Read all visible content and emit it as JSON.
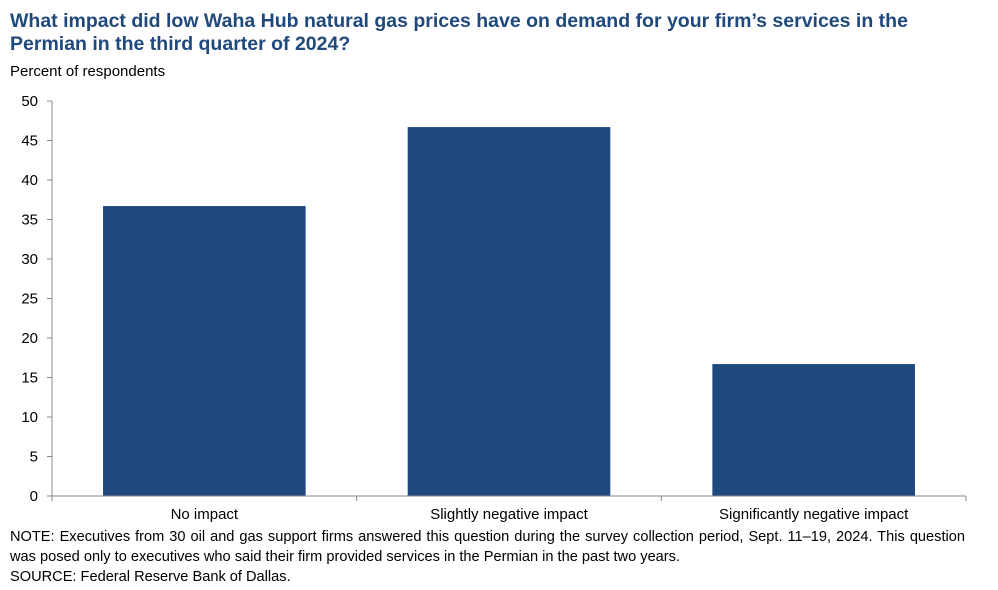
{
  "chart_data": {
    "type": "bar",
    "title": "What impact did low Waha Hub natural gas prices have on demand for your firm’s services in the Permian in the third quarter of 2024?",
    "ylabel": "Percent of respondents",
    "xlabel": "",
    "categories": [
      "No impact",
      "Slightly negative impact",
      "Significantly negative impact"
    ],
    "values": [
      36.7,
      46.7,
      16.7
    ],
    "ylim": [
      0,
      50
    ],
    "yticks": [
      0,
      5,
      10,
      15,
      20,
      25,
      30,
      35,
      40,
      45,
      50
    ],
    "grid": false,
    "bar_color": "#1f497d"
  },
  "notes": {
    "note": "NOTE: Executives from 30 oil and gas support firms answered this question during the survey collection period, Sept. 11–19, 2024. This question was posed only to executives who said their firm provided services in the Permian in the past two years.",
    "source": "SOURCE: Federal Reserve Bank of Dallas."
  }
}
